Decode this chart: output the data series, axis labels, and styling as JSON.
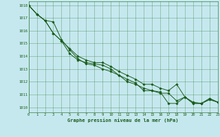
{
  "title": "Graphe pression niveau de la mer (hPa)",
  "background_color": "#c5e8ef",
  "grid_color": "#3a7a3a",
  "line_color": "#1a5c1a",
  "ylim": [
    1009.6,
    1018.3
  ],
  "xlim": [
    0,
    23
  ],
  "yticks": [
    1010,
    1011,
    1012,
    1013,
    1014,
    1015,
    1016,
    1017,
    1018
  ],
  "xticks": [
    0,
    1,
    2,
    3,
    4,
    5,
    6,
    7,
    8,
    9,
    10,
    11,
    12,
    13,
    14,
    15,
    16,
    17,
    18,
    19,
    20,
    21,
    22,
    23
  ],
  "series": [
    [
      1018.0,
      1017.3,
      1016.8,
      1016.7,
      1015.3,
      1014.5,
      1013.8,
      1013.4,
      1013.3,
      1013.0,
      1012.8,
      1012.5,
      1012.2,
      1011.9,
      1011.3,
      1011.3,
      1011.2,
      1010.3,
      1010.3,
      1010.8,
      1010.3,
      1010.3,
      1010.7,
      1010.4
    ],
    [
      1018.0,
      1017.3,
      1016.8,
      1015.8,
      1015.2,
      1014.2,
      1013.7,
      1013.5,
      1013.4,
      1013.3,
      1013.0,
      1012.5,
      1012.0,
      1011.8,
      1011.5,
      1011.3,
      1011.1,
      1011.1,
      1010.5,
      1010.8,
      1010.3,
      1010.3,
      1010.6,
      1010.4
    ],
    [
      1018.0,
      1017.3,
      1016.8,
      1015.8,
      1015.2,
      1014.6,
      1014.0,
      1013.7,
      1013.5,
      1013.5,
      1013.2,
      1012.8,
      1012.5,
      1012.2,
      1011.8,
      1011.8,
      1011.5,
      1011.3,
      1011.8,
      1010.8,
      1010.4,
      1010.3,
      1010.6,
      1010.4
    ]
  ]
}
